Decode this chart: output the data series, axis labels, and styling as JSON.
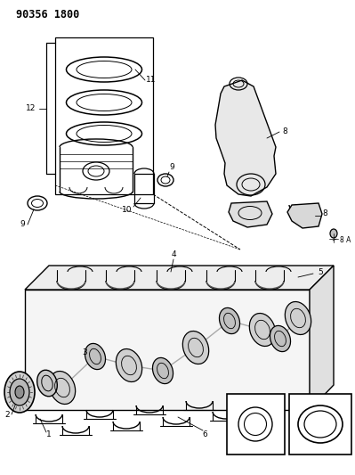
{
  "title": "90356 1800",
  "bg_color": "#ffffff",
  "fig_width": 3.99,
  "fig_height": 5.33,
  "dpi": 100
}
